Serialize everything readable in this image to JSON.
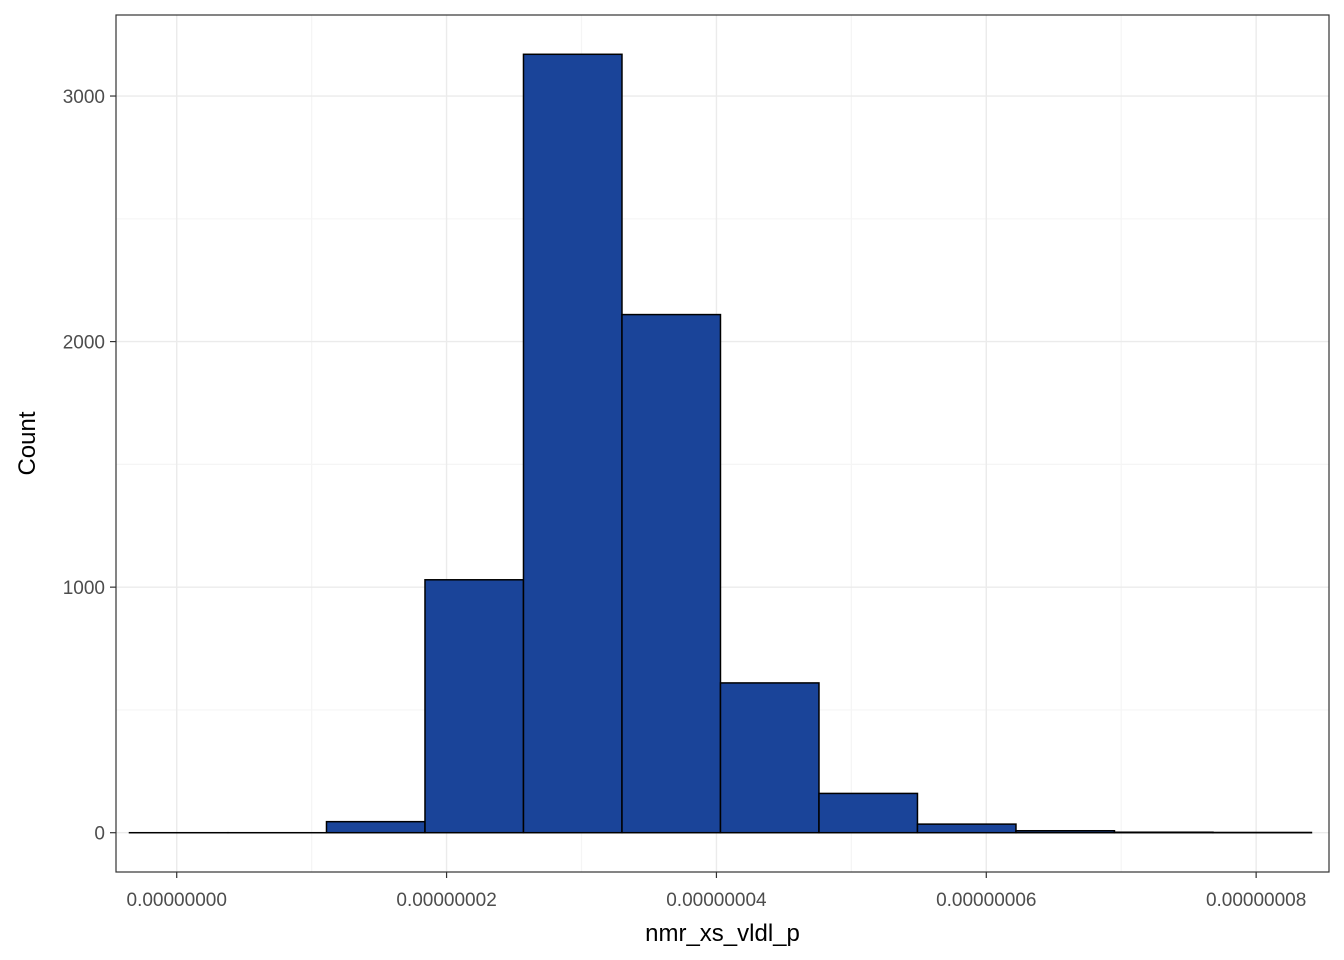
{
  "chart_data": {
    "type": "bar",
    "subtype": "histogram",
    "xlabel": "nmr_xs_vldl_p",
    "ylabel": "Count",
    "xlim": [
      -4.5e-09,
      8.54e-08
    ],
    "ylim": [
      -160,
      3330
    ],
    "x_ticks": [
      0,
      2e-08,
      4e-08,
      6e-08,
      8e-08
    ],
    "x_tick_labels": [
      "0.00000000",
      "0.00000002",
      "0.00000004",
      "0.00000006",
      "0.00000008"
    ],
    "y_ticks": [
      0,
      1000,
      2000,
      3000
    ],
    "y_tick_labels": [
      "0",
      "1000",
      "2000",
      "3000"
    ],
    "grid": true,
    "bin_width": 7.3e-09,
    "bins": [
      {
        "x_start": -3.5e-09,
        "x_end": 3.8e-09,
        "count": 0
      },
      {
        "x_start": 3.8e-09,
        "x_end": 1.11e-08,
        "count": 0
      },
      {
        "x_start": 1.11e-08,
        "x_end": 1.84e-08,
        "count": 45
      },
      {
        "x_start": 1.84e-08,
        "x_end": 2.57e-08,
        "count": 1030
      },
      {
        "x_start": 2.57e-08,
        "x_end": 3.3e-08,
        "count": 3170
      },
      {
        "x_start": 3.3e-08,
        "x_end": 4.03e-08,
        "count": 2110
      },
      {
        "x_start": 4.03e-08,
        "x_end": 4.76e-08,
        "count": 610
      },
      {
        "x_start": 4.76e-08,
        "x_end": 5.49e-08,
        "count": 160
      },
      {
        "x_start": 5.49e-08,
        "x_end": 6.22e-08,
        "count": 35
      },
      {
        "x_start": 6.22e-08,
        "x_end": 6.95e-08,
        "count": 8
      },
      {
        "x_start": 6.95e-08,
        "x_end": 7.68e-08,
        "count": 2
      },
      {
        "x_start": 7.68e-08,
        "x_end": 8.41e-08,
        "count": 1
      }
    ],
    "colors": {
      "bar_fill": "#1a4499",
      "bar_stroke": "#000000",
      "grid_major": "#ebebeb",
      "grid_minor": "#f5f5f5",
      "panel_border": "#333333"
    }
  }
}
